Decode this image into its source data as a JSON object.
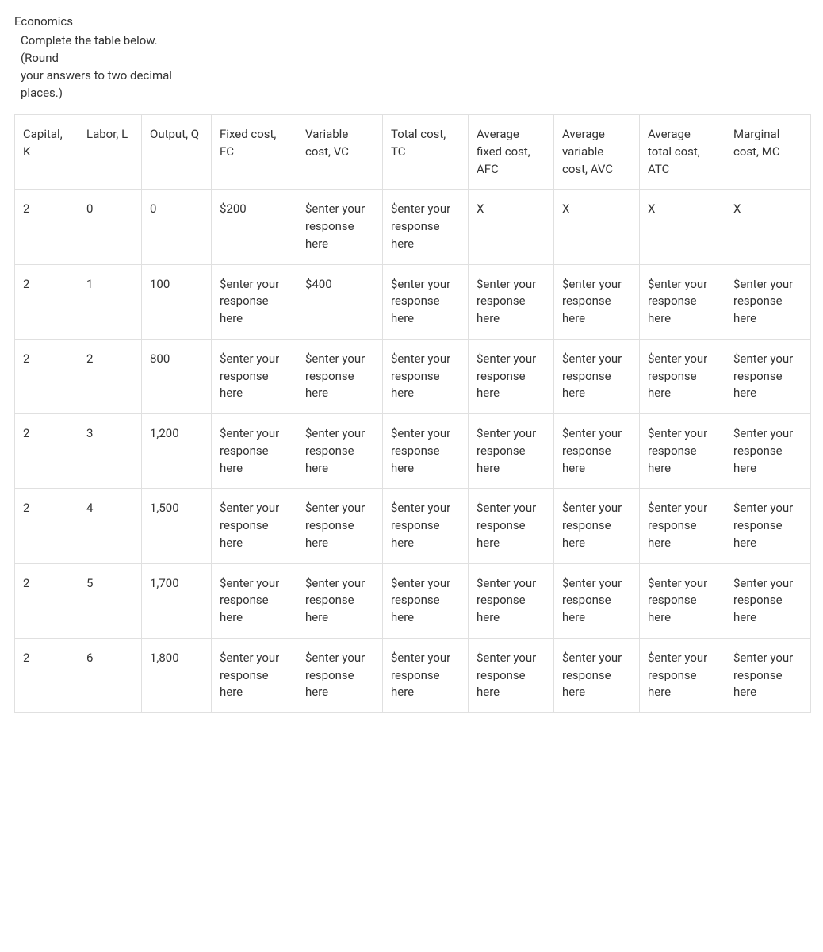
{
  "subject": "Economics",
  "instruction_lines": [
    "Complete the table below.",
    "(Round",
    "your answers to two decimal",
    "places.)"
  ],
  "placeholder": "$enter your response here",
  "na": "X",
  "table": {
    "columns": [
      "Capital, K",
      "Labor, L",
      "Output, Q",
      "Fixed cost, FC",
      "Variable cost, VC",
      "Total cost, TC",
      "Average fixed cost, AFC",
      "Average variable cost, AVC",
      "Average total cost, ATC",
      "Marginal cost, MC"
    ],
    "rows": [
      [
        "2",
        "0",
        "0",
        "$200",
        "__PH__",
        "__PH__",
        "X",
        "X",
        "X",
        "X"
      ],
      [
        "2",
        "1",
        "100",
        "__PH__",
        "$400",
        "__PH__",
        "__PH__",
        "__PH__",
        "__PH__",
        "__PH__"
      ],
      [
        "2",
        "2",
        "800",
        "__PH__",
        "__PH__",
        "__PH__",
        "__PH__",
        "__PH__",
        "__PH__",
        "__PH__"
      ],
      [
        "2",
        "3",
        "1,200",
        "__PH__",
        "__PH__",
        "__PH__",
        "__PH__",
        "__PH__",
        "__PH__",
        "__PH__"
      ],
      [
        "2",
        "4",
        "1,500",
        "__PH__",
        "__PH__",
        "__PH__",
        "__PH__",
        "__PH__",
        "__PH__",
        "__PH__"
      ],
      [
        "2",
        "5",
        "1,700",
        "__PH__",
        "__PH__",
        "__PH__",
        "__PH__",
        "__PH__",
        "__PH__",
        "__PH__"
      ],
      [
        "2",
        "6",
        "1,800",
        "__PH__",
        "__PH__",
        "__PH__",
        "__PH__",
        "__PH__",
        "__PH__",
        "__PH__"
      ]
    ],
    "column_classes": [
      "col-k",
      "col-l",
      "col-q",
      "col-w",
      "col-w",
      "col-w",
      "col-w",
      "col-w",
      "col-w",
      "col-w"
    ],
    "border_color": "#e0e0e0",
    "text_color": "#333333",
    "background_color": "#ffffff",
    "font_size": 15
  }
}
